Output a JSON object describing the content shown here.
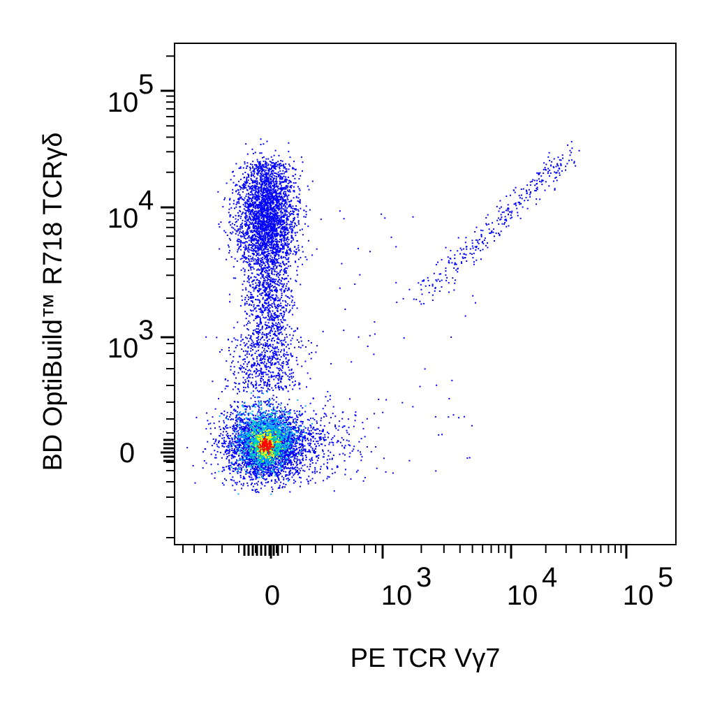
{
  "chart_data": {
    "type": "scatter",
    "title": "",
    "xlabel": "PE TCR Vγ7",
    "ylabel": "BD OptiBuild™ R718  TCRγδ",
    "scale": "biexponential (logicle)",
    "grid": false,
    "legend": "none",
    "color_scale": "density (blue → cyan → green → yellow → red)",
    "x_ticks": [
      {
        "base": "0",
        "exp": ""
      },
      {
        "base": "10",
        "exp": "3"
      },
      {
        "base": "10",
        "exp": "4"
      },
      {
        "base": "10",
        "exp": "5"
      }
    ],
    "y_ticks": [
      {
        "base": "0",
        "exp": ""
      },
      {
        "base": "10",
        "exp": "3"
      },
      {
        "base": "10",
        "exp": "4"
      },
      {
        "base": "10",
        "exp": "5"
      }
    ],
    "populations": [
      {
        "description": "double negative",
        "x_center": 0,
        "y_center": 0,
        "density": "highest"
      },
      {
        "description": "TCRγδ+ Vγ7−",
        "x_center": 0,
        "y_center": 7000,
        "density": "medium"
      },
      {
        "description": "TCRγδ+ Vγ7+",
        "x_range": [
          1500,
          35000
        ],
        "y_range": [
          1500,
          35000
        ],
        "density": "sparse diagonal"
      }
    ],
    "colors": {
      "low": "#0000ff",
      "mid_low": "#00b4ff",
      "mid": "#00e0a0",
      "mid_high": "#ffff00",
      "high": "#ff0000"
    }
  }
}
